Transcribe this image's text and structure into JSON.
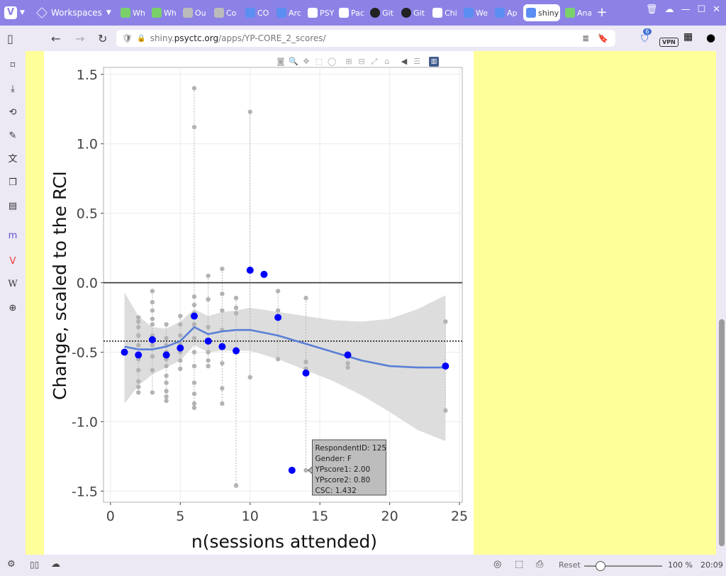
{
  "browser": {
    "workspaces_label": "Workspaces",
    "tabs": [
      {
        "label": "Wh",
        "icon": "green"
      },
      {
        "label": "Wh",
        "icon": "green"
      },
      {
        "label": "Ou",
        "icon": "gray"
      },
      {
        "label": "Co",
        "icon": "gray"
      },
      {
        "label": "CO",
        "icon": "blue"
      },
      {
        "label": "Arc",
        "icon": "blue"
      },
      {
        "label": "PSY",
        "icon": "white"
      },
      {
        "label": "Pac",
        "icon": "white"
      },
      {
        "label": "Git",
        "icon": "dark"
      },
      {
        "label": "Git",
        "icon": "dark"
      },
      {
        "label": "Chi",
        "icon": "white"
      },
      {
        "label": "We",
        "icon": "blue"
      },
      {
        "label": "Ap",
        "icon": "blue"
      },
      {
        "label": "shiny",
        "icon": "blue",
        "active": true
      },
      {
        "label": "Ana",
        "icon": "green"
      }
    ],
    "url_prefix": "shiny.",
    "url_host": "psyctc.org",
    "url_path": "/apps/YP-CORE_2_scores/",
    "extension_badge": "6",
    "vpn_label": "VPN",
    "status": {
      "reset_label": "Reset",
      "zoom": "100 %",
      "time": "20:09"
    }
  },
  "chart_data": {
    "type": "scatter",
    "xlabel": "n(sessions attended)",
    "ylabel": "Change, scaled to the RCI",
    "xlim": [
      -0.5,
      25.2
    ],
    "ylim": [
      -1.58,
      1.55
    ],
    "xticks": [
      0,
      5,
      10,
      15,
      20,
      25
    ],
    "yticks": [
      -1.5,
      -1.0,
      -0.5,
      0.0,
      0.5,
      1.0,
      1.5
    ],
    "ytick_labels": [
      "-1.5",
      "-1.0",
      "-0.5",
      "0.0",
      "0.5",
      "1.0",
      "1.5"
    ],
    "grid": true,
    "zero_line": 0.0,
    "mean_line": -0.42,
    "individual_points": [
      {
        "x": 2,
        "y": [
          -0.25,
          -0.28,
          -0.32,
          -0.38,
          -0.45,
          -0.55,
          -0.63,
          -0.71,
          -0.75,
          -0.79
        ]
      },
      {
        "x": 3,
        "y": [
          -0.06,
          -0.14,
          -0.2,
          -0.26,
          -0.3,
          -0.38,
          -0.45,
          -0.53,
          -0.63,
          -0.79
        ]
      },
      {
        "x": 4,
        "y": [
          -0.3,
          -0.4,
          -0.45,
          -0.5,
          -0.55,
          -0.6,
          -0.67,
          -0.72,
          -0.78,
          -0.82,
          -0.85
        ]
      },
      {
        "x": 5,
        "y": [
          -0.24,
          -0.3,
          -0.38,
          -0.44,
          -0.5,
          -0.56,
          -0.62
        ]
      },
      {
        "x": 6,
        "y": [
          1.4,
          1.12,
          -0.1,
          -0.16,
          -0.22,
          -0.3,
          -0.4,
          -0.5,
          -0.6,
          -0.72,
          -0.8,
          -0.87,
          -0.9
        ]
      },
      {
        "x": 7,
        "y": [
          0.05,
          -0.12,
          -0.32,
          -0.42,
          -0.5,
          -0.56,
          -0.6
        ]
      },
      {
        "x": 8,
        "y": [
          0.1,
          -0.08,
          -0.2,
          -0.34,
          -0.45,
          -0.58,
          -0.76,
          -0.87
        ]
      },
      {
        "x": 9,
        "y": [
          -0.11,
          -0.18,
          -0.22,
          -0.5,
          -1.46
        ]
      },
      {
        "x": 10,
        "y": [
          1.23,
          0.09,
          -0.68
        ]
      },
      {
        "x": 12,
        "y": [
          -0.06,
          -0.2,
          -0.55
        ]
      },
      {
        "x": 14,
        "y": [
          -0.11,
          -0.57,
          -0.62,
          -1.35
        ]
      },
      {
        "x": 17,
        "y": [
          -0.58,
          -0.61
        ]
      },
      {
        "x": 24,
        "y": [
          -0.28,
          -0.92
        ]
      }
    ],
    "group_means": [
      {
        "x": 1,
        "y": -0.5
      },
      {
        "x": 2,
        "y": -0.52
      },
      {
        "x": 3,
        "y": -0.41
      },
      {
        "x": 4,
        "y": -0.52
      },
      {
        "x": 5,
        "y": -0.47
      },
      {
        "x": 6,
        "y": -0.24
      },
      {
        "x": 7,
        "y": -0.42
      },
      {
        "x": 8,
        "y": -0.46
      },
      {
        "x": 9,
        "y": -0.49
      },
      {
        "x": 10,
        "y": 0.09
      },
      {
        "x": 11,
        "y": 0.06
      },
      {
        "x": 12,
        "y": -0.25
      },
      {
        "x": 13,
        "y": -1.35
      },
      {
        "x": 14,
        "y": -0.65
      },
      {
        "x": 17,
        "y": -0.52
      },
      {
        "x": 24,
        "y": -0.6
      }
    ],
    "smooth": {
      "x": [
        1,
        2,
        3,
        4,
        5,
        6,
        7,
        8,
        9,
        10,
        12,
        14,
        16,
        18,
        20,
        22,
        24
      ],
      "y": [
        -0.46,
        -0.48,
        -0.48,
        -0.46,
        -0.42,
        -0.32,
        -0.37,
        -0.35,
        -0.34,
        -0.34,
        -0.38,
        -0.44,
        -0.5,
        -0.56,
        -0.6,
        -0.61,
        -0.61
      ],
      "lo": [
        -0.87,
        -0.74,
        -0.66,
        -0.61,
        -0.56,
        -0.45,
        -0.5,
        -0.49,
        -0.49,
        -0.49,
        -0.55,
        -0.63,
        -0.71,
        -0.81,
        -0.93,
        -1.06,
        -1.14
      ],
      "hi": [
        -0.07,
        -0.24,
        -0.32,
        -0.33,
        -0.28,
        -0.19,
        -0.24,
        -0.21,
        -0.2,
        -0.18,
        -0.21,
        -0.24,
        -0.27,
        -0.28,
        -0.26,
        -0.19,
        -0.09
      ]
    },
    "tooltip": {
      "x": 14,
      "y": -1.35,
      "lines": [
        "RespondentID: 125",
        "Gender: F",
        "YPscore1: 2.00",
        "YPscore2: 0.80",
        "CSC: 1.432"
      ]
    },
    "colors": {
      "means": "#0000ff",
      "points": "#b3b3b3",
      "smooth": "#5a7fd6",
      "ribbon": "#d9d9d9"
    }
  }
}
